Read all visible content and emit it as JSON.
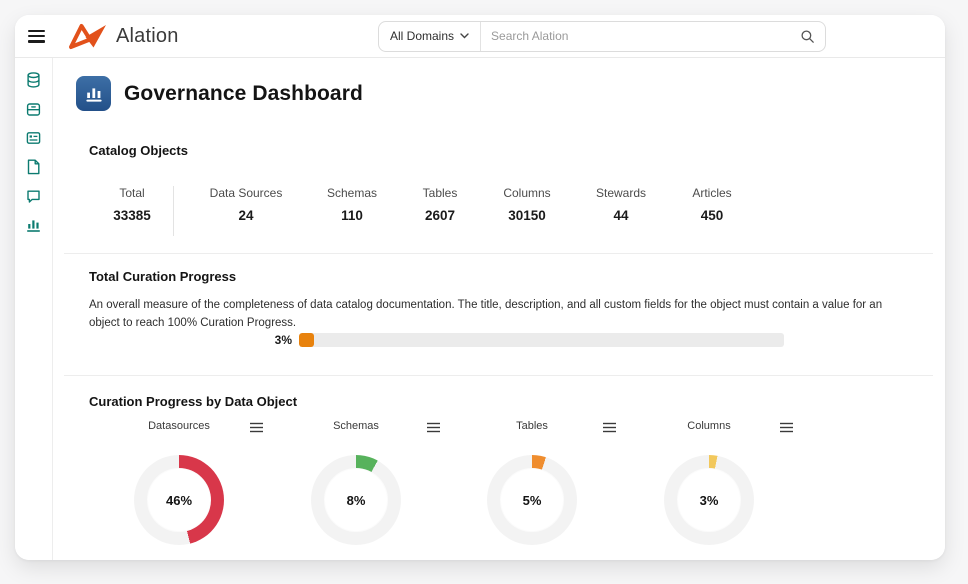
{
  "topbar": {
    "logo_text": "Alation",
    "domain_selector_label": "All Domains",
    "search_placeholder": "Search Alation"
  },
  "sidebar": {
    "items": [
      {
        "icon": "database-icon"
      },
      {
        "icon": "data-box-icon"
      },
      {
        "icon": "table-card-icon"
      },
      {
        "icon": "document-icon"
      },
      {
        "icon": "chat-icon"
      },
      {
        "icon": "bar-chart-icon"
      }
    ],
    "accent_color": "#0C7B70"
  },
  "page": {
    "title": "Governance Dashboard"
  },
  "catalog_objects": {
    "heading": "Catalog Objects",
    "stats": [
      {
        "label": "Total",
        "value": "33385"
      },
      {
        "label": "Data Sources",
        "value": "24"
      },
      {
        "label": "Schemas",
        "value": "110"
      },
      {
        "label": "Tables",
        "value": "2607"
      },
      {
        "label": "Columns",
        "value": "30150"
      },
      {
        "label": "Stewards",
        "value": "44"
      },
      {
        "label": "Articles",
        "value": "450"
      }
    ]
  },
  "curation_progress": {
    "heading": "Total Curation Progress",
    "description": "An overall measure of the completeness of data catalog documentation. The title, description, and all custom fields for the object must contain a value for an object to reach 100% Curation Progress.",
    "value": 3,
    "label": "3%",
    "bar_color": "#E8820D",
    "track_color": "#EBEBEB"
  },
  "chart_data": {
    "type": "donut-set",
    "heading": "Curation Progress by Data Object",
    "track_color": "#F3F3F3",
    "charts": [
      {
        "title": "Datasources",
        "value": 46,
        "label": "46%",
        "color": "#D8374A"
      },
      {
        "title": "Schemas",
        "value": 8,
        "label": "8%",
        "color": "#57B25C"
      },
      {
        "title": "Tables",
        "value": 5,
        "label": "5%",
        "color": "#EF8D2E"
      },
      {
        "title": "Columns",
        "value": 3,
        "label": "3%",
        "color": "#F2C85C"
      }
    ]
  }
}
